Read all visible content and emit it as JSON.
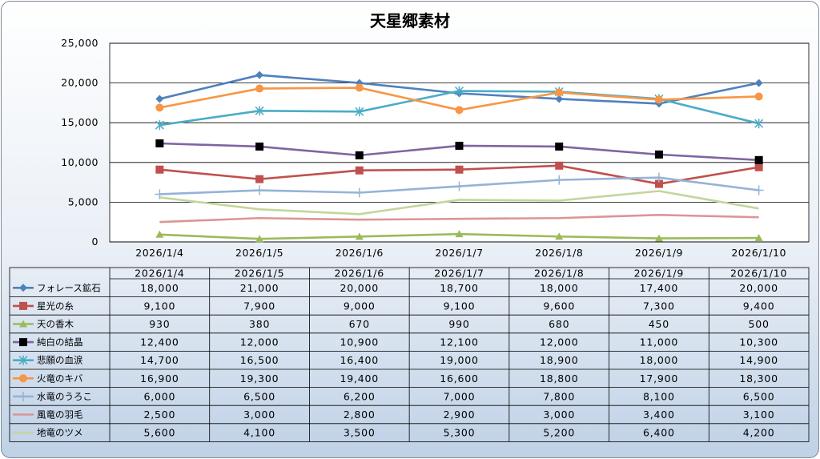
{
  "chart_data": {
    "type": "line",
    "title": "天星郷素材",
    "categories": [
      "2026/1/4",
      "2026/1/5",
      "2026/1/6",
      "2026/1/7",
      "2026/1/8",
      "2026/1/9",
      "2026/1/10"
    ],
    "ylim": [
      0,
      25000
    ],
    "yticks": [
      "0",
      "5,000",
      "10,000",
      "15,000",
      "20,000",
      "25,000"
    ],
    "grid": true,
    "legend": "data-table",
    "series": [
      {
        "name": "フォレース鉱石",
        "color": "#4f81bd",
        "marker": "diamond",
        "values": [
          18000,
          21000,
          20000,
          18700,
          18000,
          17400,
          20000
        ],
        "labels": [
          "18,000",
          "21,000",
          "20,000",
          "18,700",
          "18,000",
          "17,400",
          "20,000"
        ]
      },
      {
        "name": "星光の糸",
        "color": "#c0504d",
        "marker": "square",
        "values": [
          9100,
          7900,
          9000,
          9100,
          9600,
          7300,
          9400
        ],
        "labels": [
          "9,100",
          "7,900",
          "9,000",
          "9,100",
          "9,600",
          "7,300",
          "9,400"
        ]
      },
      {
        "name": "天の香木",
        "color": "#9bbb59",
        "marker": "triangle",
        "values": [
          930,
          380,
          670,
          990,
          680,
          450,
          500
        ],
        "labels": [
          "930",
          "380",
          "670",
          "990",
          "680",
          "450",
          "500"
        ]
      },
      {
        "name": "純白の結晶",
        "color": "#8064a2",
        "marker": "blacksquare",
        "values": [
          12400,
          12000,
          10900,
          12100,
          12000,
          11000,
          10300
        ],
        "labels": [
          "12,400",
          "12,000",
          "10,900",
          "12,100",
          "12,000",
          "11,000",
          "10,300"
        ]
      },
      {
        "name": "悲願の血涙",
        "color": "#4bacc6",
        "marker": "star",
        "values": [
          14700,
          16500,
          16400,
          19000,
          18900,
          18000,
          14900
        ],
        "labels": [
          "14,700",
          "16,500",
          "16,400",
          "19,000",
          "18,900",
          "18,000",
          "14,900"
        ]
      },
      {
        "name": "火竜のキバ",
        "color": "#f79646",
        "marker": "circle",
        "values": [
          16900,
          19300,
          19400,
          16600,
          18800,
          17900,
          18300
        ],
        "labels": [
          "16,900",
          "19,300",
          "19,400",
          "16,600",
          "18,800",
          "17,900",
          "18,300"
        ]
      },
      {
        "name": "水竜のうろこ",
        "color": "#95b3d7",
        "marker": "plus",
        "values": [
          6000,
          6500,
          6200,
          7000,
          7800,
          8100,
          6500
        ],
        "labels": [
          "6,000",
          "6,500",
          "6,200",
          "7,000",
          "7,800",
          "8,100",
          "6,500"
        ]
      },
      {
        "name": "風竜の羽毛",
        "color": "#da9694",
        "marker": "none",
        "values": [
          2500,
          3000,
          2800,
          2900,
          3000,
          3400,
          3100
        ],
        "labels": [
          "2,500",
          "3,000",
          "2,800",
          "2,900",
          "3,000",
          "3,400",
          "3,100"
        ]
      },
      {
        "name": "地竜のツメ",
        "color": "#c3d69b",
        "marker": "none",
        "values": [
          5600,
          4100,
          3500,
          5300,
          5200,
          6400,
          4200
        ],
        "labels": [
          "5,600",
          "4,100",
          "3,500",
          "5,300",
          "5,200",
          "6,400",
          "4,200"
        ]
      }
    ]
  }
}
